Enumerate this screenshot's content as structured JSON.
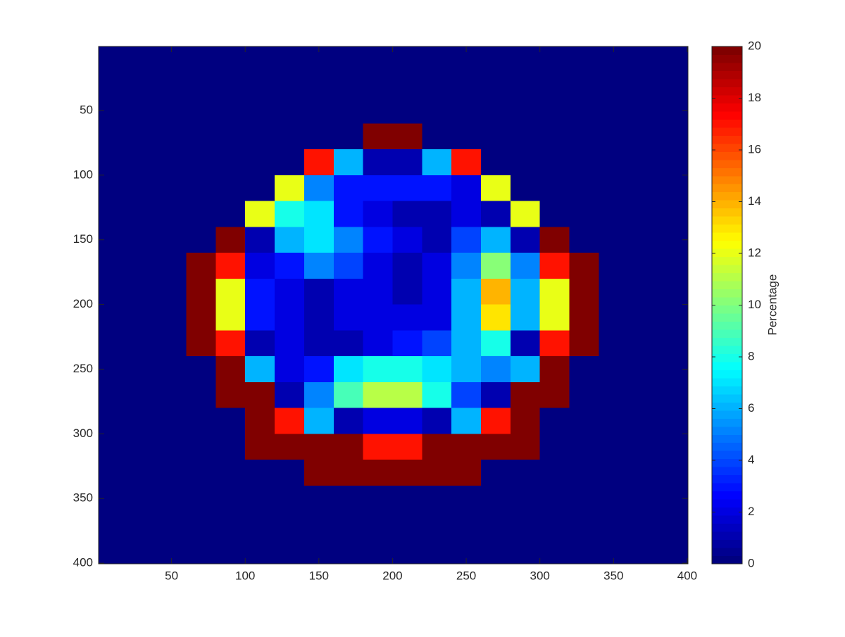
{
  "chart_data": {
    "type": "heatmap",
    "colorbar_label": "Percentage",
    "colormap": "jet",
    "clim": [
      0,
      20
    ],
    "cticks": [
      0,
      2,
      4,
      6,
      8,
      10,
      12,
      14,
      16,
      18,
      20
    ],
    "xlim": [
      0.5,
      400.5
    ],
    "ylim": [
      0.5,
      400.5
    ],
    "y_reversed": true,
    "xticks": [
      50,
      100,
      150,
      200,
      250,
      300,
      350,
      400
    ],
    "yticks": [
      50,
      100,
      150,
      200,
      250,
      300,
      350,
      400
    ],
    "x": [
      10,
      30,
      50,
      70,
      90,
      110,
      130,
      150,
      170,
      190,
      210,
      230,
      250,
      270,
      290,
      310,
      330,
      350,
      370,
      390
    ],
    "y": [
      10,
      30,
      50,
      70,
      90,
      110,
      130,
      150,
      170,
      190,
      210,
      230,
      250,
      270,
      290,
      310,
      330,
      350,
      370,
      390
    ],
    "values": [
      [
        0,
        0,
        0,
        0,
        0,
        0,
        0,
        0,
        0,
        0,
        0,
        0,
        0,
        0,
        0,
        0,
        0,
        0,
        0,
        0
      ],
      [
        0,
        0,
        0,
        0,
        0,
        0,
        0,
        0,
        0,
        0,
        0,
        0,
        0,
        0,
        0,
        0,
        0,
        0,
        0,
        0
      ],
      [
        0,
        0,
        0,
        0,
        0,
        0,
        0,
        0,
        0,
        0,
        0,
        0,
        0,
        0,
        0,
        0,
        0,
        0,
        0,
        0
      ],
      [
        0,
        0,
        0,
        0,
        0,
        0,
        0,
        0,
        0,
        20,
        20,
        0,
        0,
        0,
        0,
        0,
        0,
        0,
        0,
        0
      ],
      [
        0,
        0,
        0,
        0,
        0,
        0,
        0,
        17,
        6,
        1,
        1,
        6,
        17,
        0,
        0,
        0,
        0,
        0,
        0,
        0
      ],
      [
        0,
        0,
        0,
        0,
        0,
        0,
        12,
        5,
        3,
        3,
        3,
        3,
        2,
        12,
        0,
        0,
        0,
        0,
        0,
        0
      ],
      [
        0,
        0,
        0,
        0,
        0,
        12,
        8,
        7,
        3,
        2,
        1,
        1,
        2,
        1,
        12,
        0,
        0,
        0,
        0,
        0
      ],
      [
        0,
        0,
        0,
        0,
        20,
        1,
        6,
        7,
        5,
        3,
        2,
        1,
        4,
        6,
        1,
        20,
        0,
        0,
        0,
        0
      ],
      [
        0,
        0,
        0,
        20,
        17,
        2,
        3,
        5,
        4,
        2,
        1,
        2,
        5,
        10,
        5,
        17,
        20,
        0,
        0,
        0
      ],
      [
        0,
        0,
        0,
        20,
        12,
        3,
        2,
        1,
        2,
        2,
        1,
        2,
        6,
        14,
        6,
        12,
        20,
        0,
        0,
        0
      ],
      [
        0,
        0,
        0,
        20,
        12,
        3,
        2,
        1,
        2,
        2,
        2,
        2,
        6,
        13,
        6,
        12,
        20,
        0,
        0,
        0
      ],
      [
        0,
        0,
        0,
        20,
        17,
        1,
        2,
        1,
        1,
        2,
        3,
        4,
        6,
        8,
        1,
        17,
        20,
        0,
        0,
        0
      ],
      [
        0,
        0,
        0,
        0,
        20,
        6,
        2,
        3,
        7,
        8,
        8,
        7,
        6,
        5,
        6,
        20,
        0,
        0,
        0,
        0
      ],
      [
        0,
        0,
        0,
        0,
        20,
        20,
        1,
        5,
        9,
        11,
        11,
        8,
        4,
        1,
        20,
        20,
        0,
        0,
        0,
        0
      ],
      [
        0,
        0,
        0,
        0,
        0,
        20,
        17,
        6,
        1,
        2,
        2,
        1,
        6,
        17,
        20,
        0,
        0,
        0,
        0,
        0
      ],
      [
        0,
        0,
        0,
        0,
        0,
        20,
        20,
        20,
        20,
        17,
        17,
        20,
        20,
        20,
        20,
        0,
        0,
        0,
        0,
        0
      ],
      [
        0,
        0,
        0,
        0,
        0,
        0,
        0,
        20,
        20,
        20,
        20,
        20,
        20,
        0,
        0,
        0,
        0,
        0,
        0,
        0
      ],
      [
        0,
        0,
        0,
        0,
        0,
        0,
        0,
        0,
        0,
        0,
        0,
        0,
        0,
        0,
        0,
        0,
        0,
        0,
        0,
        0
      ],
      [
        0,
        0,
        0,
        0,
        0,
        0,
        0,
        0,
        0,
        0,
        0,
        0,
        0,
        0,
        0,
        0,
        0,
        0,
        0,
        0
      ],
      [
        0,
        0,
        0,
        0,
        0,
        0,
        0,
        0,
        0,
        0,
        0,
        0,
        0,
        0,
        0,
        0,
        0,
        0,
        0,
        0
      ]
    ]
  }
}
